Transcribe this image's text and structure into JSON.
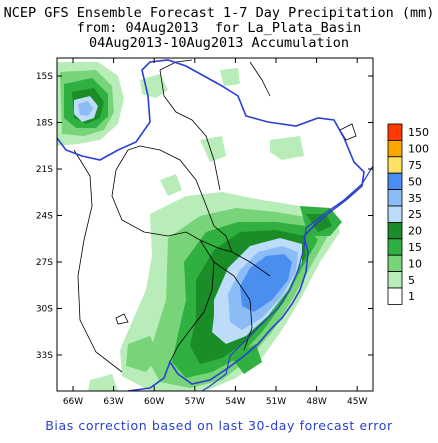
{
  "title": {
    "line1": "NCEP GFS Ensemble Forecast 1-7 Day Precipitation (mm)",
    "line2": "from: 04Aug2013  for La_Plata_Basin",
    "line3": "04Aug2013-10Aug2013 Accumulation"
  },
  "lat_labels": [
    "15S",
    "18S",
    "21S",
    "24S",
    "27S",
    "30S",
    "33S"
  ],
  "lon_labels": [
    "66W",
    "63W",
    "60W",
    "57W",
    "54W",
    "51W",
    "48W",
    "45W"
  ],
  "legend": {
    "levels": [
      {
        "label": "150",
        "color": "#ff3a00"
      },
      {
        "label": "100",
        "color": "#ffa500"
      },
      {
        "label": "75",
        "color": "#ffe066"
      },
      {
        "label": "50",
        "color": "#4a8ef0"
      },
      {
        "label": "35",
        "color": "#8cbcf5"
      },
      {
        "label": "25",
        "color": "#bcdcfa"
      },
      {
        "label": "20",
        "color": "#1a8c28"
      },
      {
        "label": "15",
        "color": "#30b040"
      },
      {
        "label": "10",
        "color": "#78d478"
      },
      {
        "label": "5",
        "color": "#b8ecb8"
      },
      {
        "label": "1",
        "color": "#ffffff"
      }
    ]
  },
  "footer": "Bias correction based on last 30-day forecast error"
}
